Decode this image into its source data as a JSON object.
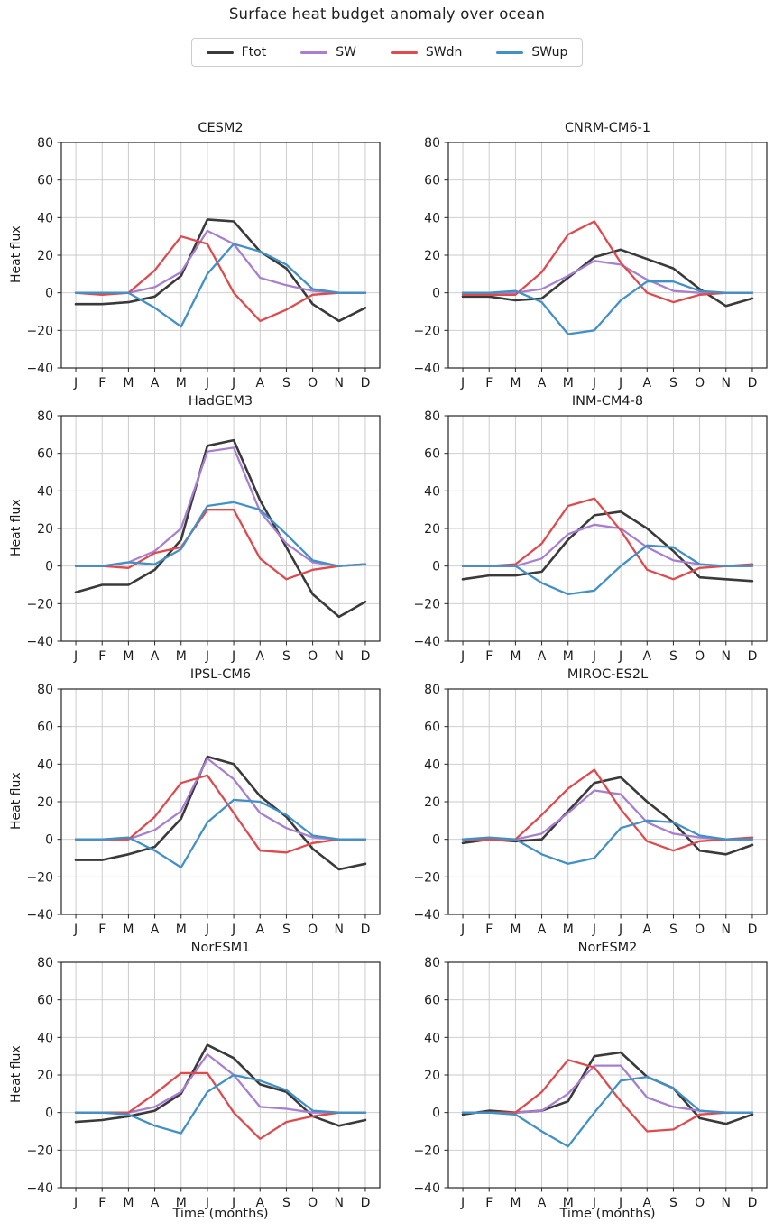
{
  "suptitle": "Surface heat budget anomaly over ocean",
  "ylabel": "Heat flux",
  "xlabel": "Time (months)",
  "legend": {
    "items": [
      {
        "label": "Ftot",
        "color": "#3a3a3a"
      },
      {
        "label": "SW",
        "color": "#a87fd0"
      },
      {
        "label": "SWdn",
        "color": "#dd4b4e"
      },
      {
        "label": "SWup",
        "color": "#4191c6"
      }
    ]
  },
  "axes": {
    "months": [
      "J",
      "F",
      "M",
      "A",
      "M",
      "J",
      "J",
      "A",
      "S",
      "O",
      "N",
      "D"
    ],
    "yticks": [
      80,
      60,
      40,
      20,
      0,
      -20,
      -40
    ],
    "ylim": [
      -40,
      80
    ],
    "grid": true
  },
  "chart_data": [
    {
      "type": "line",
      "title": "CESM2",
      "categories": [
        "J",
        "F",
        "M",
        "A",
        "M",
        "J",
        "J",
        "A",
        "S",
        "O",
        "N",
        "D"
      ],
      "ylim": [
        -40,
        80
      ],
      "series": [
        {
          "name": "Ftot",
          "values": [
            -6,
            -6,
            -5,
            -2,
            9,
            39,
            38,
            22,
            13,
            -6,
            -15,
            -8
          ]
        },
        {
          "name": "SW",
          "values": [
            0,
            0,
            0,
            3,
            11,
            33,
            26,
            8,
            4,
            1,
            0,
            0
          ]
        },
        {
          "name": "SWdn",
          "values": [
            0,
            -1,
            0,
            12,
            30,
            26,
            0,
            -15,
            -9,
            -1,
            0,
            0
          ]
        },
        {
          "name": "SWup",
          "values": [
            0,
            0,
            0,
            -8,
            -18,
            10,
            26,
            22,
            15,
            2,
            0,
            0
          ]
        }
      ]
    },
    {
      "type": "line",
      "title": "CNRM-CM6-1",
      "categories": [
        "J",
        "F",
        "M",
        "A",
        "M",
        "J",
        "J",
        "A",
        "S",
        "O",
        "N",
        "D"
      ],
      "ylim": [
        -40,
        80
      ],
      "series": [
        {
          "name": "Ftot",
          "values": [
            -2,
            -2,
            -4,
            -3,
            8,
            19,
            23,
            18,
            13,
            2,
            -7,
            -3
          ]
        },
        {
          "name": "SW",
          "values": [
            0,
            0,
            0,
            2,
            9,
            17,
            15,
            7,
            1,
            0,
            0,
            0
          ]
        },
        {
          "name": "SWdn",
          "values": [
            -1,
            -1,
            -1,
            11,
            31,
            38,
            16,
            0,
            -5,
            -1,
            0,
            0
          ]
        },
        {
          "name": "SWup",
          "values": [
            0,
            0,
            1,
            -5,
            -22,
            -20,
            -4,
            6,
            6,
            1,
            0,
            0
          ]
        }
      ]
    },
    {
      "type": "line",
      "title": "HadGEM3",
      "categories": [
        "J",
        "F",
        "M",
        "A",
        "M",
        "J",
        "J",
        "A",
        "S",
        "O",
        "N",
        "D"
      ],
      "ylim": [
        -40,
        80
      ],
      "series": [
        {
          "name": "Ftot",
          "values": [
            -14,
            -10,
            -10,
            -2,
            14,
            64,
            67,
            35,
            10,
            -15,
            -27,
            -19
          ]
        },
        {
          "name": "SW",
          "values": [
            0,
            0,
            2,
            8,
            20,
            61,
            63,
            29,
            12,
            2,
            0,
            1
          ]
        },
        {
          "name": "SWdn",
          "values": [
            0,
            0,
            -1,
            7,
            10,
            30,
            30,
            4,
            -7,
            -2,
            0,
            1
          ]
        },
        {
          "name": "SWup",
          "values": [
            0,
            0,
            2,
            1,
            9,
            32,
            34,
            30,
            17,
            3,
            0,
            1
          ]
        }
      ]
    },
    {
      "type": "line",
      "title": "INM-CM4-8",
      "categories": [
        "J",
        "F",
        "M",
        "A",
        "M",
        "J",
        "J",
        "A",
        "S",
        "O",
        "N",
        "D"
      ],
      "ylim": [
        -40,
        80
      ],
      "series": [
        {
          "name": "Ftot",
          "values": [
            -7,
            -5,
            -5,
            -3,
            14,
            27,
            29,
            20,
            8,
            -6,
            -7,
            -8
          ]
        },
        {
          "name": "SW",
          "values": [
            0,
            0,
            0,
            4,
            17,
            22,
            20,
            10,
            3,
            1,
            0,
            0
          ]
        },
        {
          "name": "SWdn",
          "values": [
            0,
            0,
            1,
            12,
            32,
            36,
            19,
            -2,
            -7,
            -1,
            0,
            1
          ]
        },
        {
          "name": "SWup",
          "values": [
            0,
            0,
            0,
            -9,
            -15,
            -13,
            0,
            11,
            10,
            1,
            0,
            0
          ]
        }
      ]
    },
    {
      "type": "line",
      "title": "IPSL-CM6",
      "categories": [
        "J",
        "F",
        "M",
        "A",
        "M",
        "J",
        "J",
        "A",
        "S",
        "O",
        "N",
        "D"
      ],
      "ylim": [
        -40,
        80
      ],
      "series": [
        {
          "name": "Ftot",
          "values": [
            -11,
            -11,
            -8,
            -4,
            11,
            44,
            40,
            23,
            12,
            -5,
            -16,
            -13
          ]
        },
        {
          "name": "SW",
          "values": [
            0,
            0,
            0,
            5,
            15,
            43,
            32,
            14,
            6,
            1,
            0,
            0
          ]
        },
        {
          "name": "SWdn",
          "values": [
            0,
            0,
            0,
            12,
            30,
            34,
            14,
            -6,
            -7,
            -2,
            0,
            0
          ]
        },
        {
          "name": "SWup",
          "values": [
            0,
            0,
            1,
            -6,
            -15,
            9,
            21,
            20,
            13,
            2,
            0,
            0
          ]
        }
      ]
    },
    {
      "type": "line",
      "title": "MIROC-ES2L",
      "categories": [
        "J",
        "F",
        "M",
        "A",
        "M",
        "J",
        "J",
        "A",
        "S",
        "O",
        "N",
        "D"
      ],
      "ylim": [
        -40,
        80
      ],
      "series": [
        {
          "name": "Ftot",
          "values": [
            -2,
            0,
            -1,
            0,
            15,
            30,
            33,
            20,
            9,
            -6,
            -8,
            -3
          ]
        },
        {
          "name": "SW",
          "values": [
            0,
            0,
            0,
            3,
            14,
            26,
            24,
            9,
            3,
            1,
            0,
            0
          ]
        },
        {
          "name": "SWdn",
          "values": [
            0,
            0,
            0,
            13,
            27,
            37,
            16,
            -1,
            -6,
            -1,
            0,
            1
          ]
        },
        {
          "name": "SWup",
          "values": [
            0,
            1,
            0,
            -8,
            -13,
            -10,
            6,
            10,
            9,
            2,
            0,
            0
          ]
        }
      ]
    },
    {
      "type": "line",
      "title": "NorESM1",
      "categories": [
        "J",
        "F",
        "M",
        "A",
        "M",
        "J",
        "J",
        "A",
        "S",
        "O",
        "N",
        "D"
      ],
      "ylim": [
        -40,
        80
      ],
      "series": [
        {
          "name": "Ftot",
          "values": [
            -5,
            -4,
            -2,
            1,
            10,
            36,
            29,
            15,
            11,
            -2,
            -7,
            -4
          ]
        },
        {
          "name": "SW",
          "values": [
            0,
            0,
            0,
            3,
            11,
            31,
            20,
            3,
            2,
            0,
            0,
            0
          ]
        },
        {
          "name": "SWdn",
          "values": [
            0,
            0,
            0,
            10,
            21,
            21,
            0,
            -14,
            -5,
            -2,
            0,
            0
          ]
        },
        {
          "name": "SWup",
          "values": [
            0,
            0,
            -1,
            -7,
            -11,
            11,
            20,
            17,
            12,
            1,
            0,
            0
          ]
        }
      ]
    },
    {
      "type": "line",
      "title": "NorESM2",
      "categories": [
        "J",
        "F",
        "M",
        "A",
        "M",
        "J",
        "J",
        "A",
        "S",
        "O",
        "N",
        "D"
      ],
      "ylim": [
        -40,
        80
      ],
      "series": [
        {
          "name": "Ftot",
          "values": [
            -1,
            1,
            0,
            1,
            6,
            30,
            32,
            19,
            13,
            -3,
            -6,
            -1
          ]
        },
        {
          "name": "SW",
          "values": [
            0,
            0,
            0,
            1,
            10,
            25,
            25,
            8,
            3,
            1,
            0,
            0
          ]
        },
        {
          "name": "SWdn",
          "values": [
            0,
            0,
            0,
            11,
            28,
            24,
            6,
            -10,
            -9,
            -1,
            0,
            0
          ]
        },
        {
          "name": "SWup",
          "values": [
            0,
            0,
            -1,
            -10,
            -18,
            0,
            17,
            19,
            13,
            1,
            0,
            0
          ]
        }
      ]
    }
  ]
}
